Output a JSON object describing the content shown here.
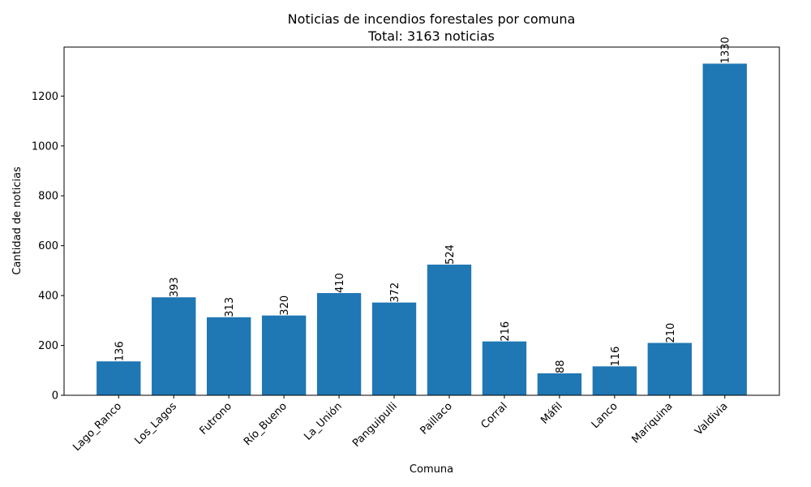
{
  "chart_data": {
    "type": "bar",
    "title": "Noticias de incendios forestales por comuna",
    "subtitle": "Total: 3163 noticias",
    "xlabel": "Comuna",
    "ylabel": "Cantidad de noticias",
    "categories": [
      "Lago_Ranco",
      "Los_Lagos",
      "Futrono",
      "Río_Bueno",
      "La_Unión",
      "Panguipulli",
      "Paillaco",
      "Corral",
      "Máfil",
      "Lanco",
      "Mariquina",
      "Valdivia"
    ],
    "values": [
      136,
      393,
      313,
      320,
      410,
      372,
      524,
      216,
      88,
      116,
      210,
      1330
    ],
    "ylim": [
      0,
      1396.5
    ],
    "yticks": [
      0,
      200,
      400,
      600,
      800,
      1000,
      1200
    ],
    "bar_color": "#1f77b4",
    "grid": false,
    "data_labels": true
  }
}
